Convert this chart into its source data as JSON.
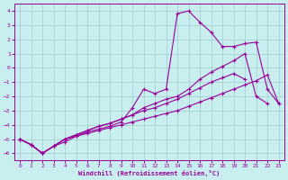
{
  "xlabel": "Windchill (Refroidissement éolien,°C)",
  "xlim": [
    -0.5,
    23.5
  ],
  "ylim": [
    -6.5,
    4.5
  ],
  "yticks": [
    4,
    3,
    2,
    1,
    0,
    -1,
    -2,
    -3,
    -4,
    -5,
    -6
  ],
  "xticks": [
    0,
    1,
    2,
    3,
    4,
    5,
    6,
    7,
    8,
    9,
    10,
    11,
    12,
    13,
    14,
    15,
    16,
    17,
    18,
    19,
    20,
    21,
    22,
    23
  ],
  "bg_color": "#c8eef0",
  "line_color": "#990099",
  "grid_color": "#a0cccc",
  "series": {
    "s1": {
      "x": [
        0,
        1,
        2,
        3,
        4,
        5,
        6,
        7,
        8,
        9,
        10,
        11,
        12,
        13,
        14,
        15,
        16,
        17,
        18,
        19,
        20,
        21,
        22,
        23
      ],
      "y": [
        -5.0,
        -5.4,
        -6.0,
        -5.5,
        -5.2,
        -4.8,
        -4.5,
        -4.3,
        -4.1,
        -3.8,
        -2.8,
        -1.5,
        -1.8,
        -1.5,
        3.8,
        4.0,
        3.2,
        2.5,
        1.5,
        1.5,
        1.7,
        1.8,
        -1.5,
        -2.5
      ]
    },
    "s2": {
      "x": [
        0,
        1,
        2,
        3,
        4,
        5,
        6,
        7,
        8,
        9,
        10,
        11,
        12,
        13,
        14,
        15,
        16,
        17,
        18,
        19,
        20,
        21,
        22,
        23
      ],
      "y": [
        -5.0,
        -5.4,
        -6.0,
        -5.5,
        -5.0,
        -4.7,
        -4.4,
        -4.1,
        -3.9,
        -3.6,
        -3.3,
        -2.8,
        -2.5,
        -2.2,
        -2.0,
        -1.5,
        -0.8,
        -0.3,
        0.1,
        0.5,
        1.0,
        -2.0,
        -2.5,
        null
      ]
    },
    "s3": {
      "x": [
        0,
        1,
        2,
        3,
        4,
        5,
        6,
        7,
        8,
        9,
        10,
        11,
        12,
        13,
        14,
        15,
        16,
        17,
        18,
        19,
        20,
        21,
        22,
        23
      ],
      "y": [
        -5.0,
        -5.4,
        -6.0,
        -5.5,
        -5.0,
        -4.7,
        -4.4,
        -4.1,
        -3.9,
        -3.6,
        -3.3,
        -3.0,
        -2.8,
        -2.5,
        -2.2,
        -1.8,
        -1.4,
        -1.0,
        -0.7,
        -0.4,
        -0.8,
        null,
        null,
        null
      ]
    },
    "s4": {
      "x": [
        0,
        1,
        2,
        3,
        4,
        5,
        6,
        7,
        8,
        9,
        10,
        11,
        12,
        13,
        14,
        15,
        16,
        17,
        18,
        19,
        20,
        21,
        22,
        23
      ],
      "y": [
        -5.0,
        -5.4,
        -6.0,
        -5.5,
        -5.0,
        -4.8,
        -4.6,
        -4.4,
        -4.2,
        -4.0,
        -3.8,
        -3.6,
        -3.4,
        -3.2,
        -3.0,
        -2.7,
        -2.4,
        -2.1,
        -1.8,
        -1.5,
        -1.2,
        -0.9,
        -0.5,
        -2.5
      ]
    }
  }
}
